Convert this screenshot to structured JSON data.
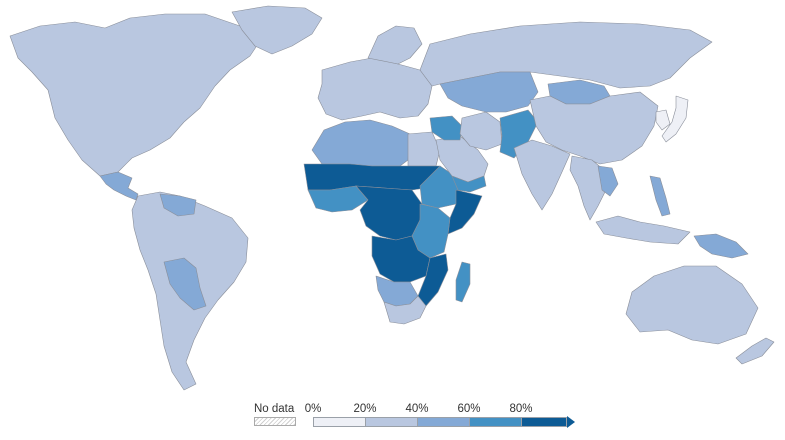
{
  "legend": {
    "no_data_label": "No data",
    "ticks": [
      "0%",
      "20%",
      "40%",
      "60%",
      "80%"
    ],
    "bin_colors": [
      "#eef0f6",
      "#b9c7e0",
      "#84a9d6",
      "#4391c4",
      "#0d5b95"
    ],
    "no_data_color": "#ffffff"
  },
  "regions": [
    {
      "name": "north-america",
      "bin": 1
    },
    {
      "name": "greenland",
      "bin": 1
    },
    {
      "name": "central-america",
      "bin": 2
    },
    {
      "name": "south-america",
      "bin": 1
    },
    {
      "name": "bolivia",
      "bin": 2
    },
    {
      "name": "venezuela",
      "bin": 2
    },
    {
      "name": "europe",
      "bin": 1
    },
    {
      "name": "scandinavia",
      "bin": 1
    },
    {
      "name": "russia",
      "bin": 1
    },
    {
      "name": "north-africa",
      "bin": 2
    },
    {
      "name": "egypt",
      "bin": 1
    },
    {
      "name": "sahel",
      "bin": 4
    },
    {
      "name": "west-africa-coast",
      "bin": 3
    },
    {
      "name": "horn-of-africa",
      "bin": 3
    },
    {
      "name": "somalia",
      "bin": 4
    },
    {
      "name": "central-africa",
      "bin": 4
    },
    {
      "name": "east-africa",
      "bin": 3
    },
    {
      "name": "southern-africa-central",
      "bin": 4
    },
    {
      "name": "mozambique",
      "bin": 4
    },
    {
      "name": "namibia-botswana",
      "bin": 2
    },
    {
      "name": "south-africa",
      "bin": 1
    },
    {
      "name": "madagascar",
      "bin": 3
    },
    {
      "name": "arabian-peninsula",
      "bin": 1
    },
    {
      "name": "yemen",
      "bin": 3
    },
    {
      "name": "iraq-syria",
      "bin": 3
    },
    {
      "name": "iran",
      "bin": 1
    },
    {
      "name": "central-asia",
      "bin": 2
    },
    {
      "name": "afghanistan-pakistan",
      "bin": 3
    },
    {
      "name": "mongolia",
      "bin": 2
    },
    {
      "name": "china",
      "bin": 1
    },
    {
      "name": "india",
      "bin": 1
    },
    {
      "name": "southeast-asia",
      "bin": 1
    },
    {
      "name": "laos-cambodia",
      "bin": 2
    },
    {
      "name": "indonesia",
      "bin": 1
    },
    {
      "name": "philippines",
      "bin": 2
    },
    {
      "name": "papua-new-guinea",
      "bin": 2
    },
    {
      "name": "japan",
      "bin": 0
    },
    {
      "name": "korea",
      "bin": 0
    },
    {
      "name": "australia",
      "bin": 1
    },
    {
      "name": "new-zealand",
      "bin": 1
    }
  ]
}
